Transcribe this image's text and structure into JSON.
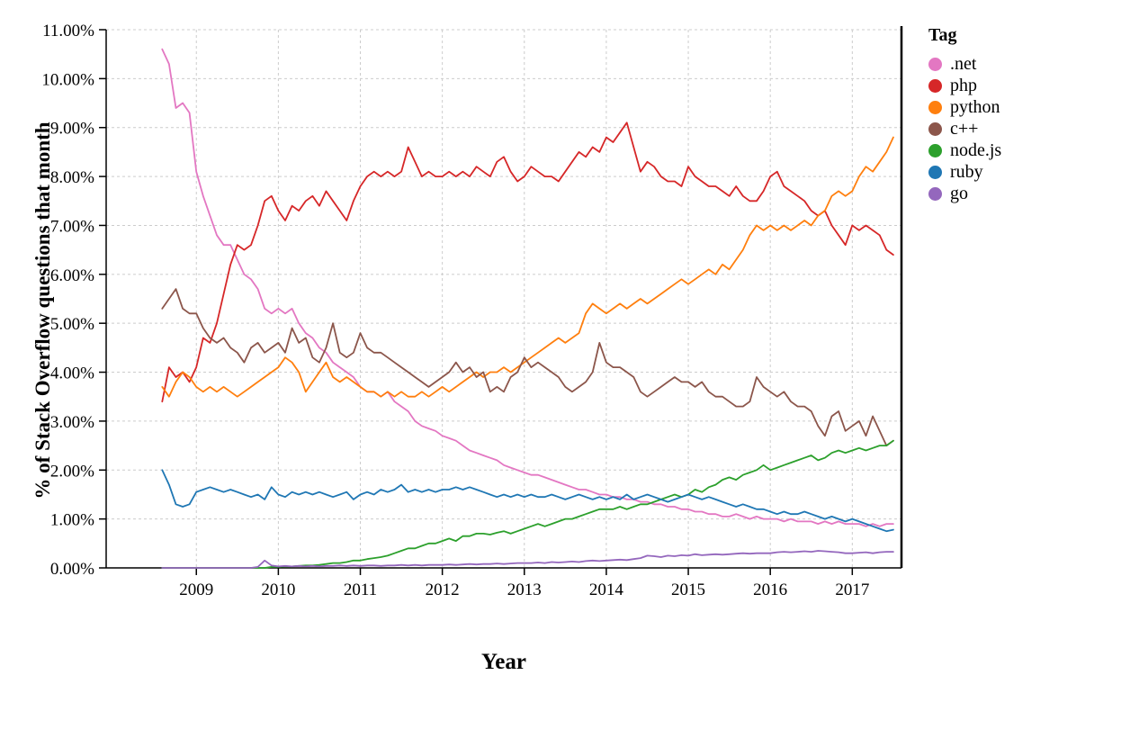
{
  "page": {
    "background": "#ffffff"
  },
  "chart_data": {
    "type": "line",
    "title": "",
    "xlabel": "Year",
    "ylabel": "% of Stack Overflow questions that month",
    "legend_title": "Tag",
    "legend_position": "right",
    "grid": true,
    "x_domain": [
      2007.9,
      2017.6
    ],
    "y_domain": [
      0,
      11
    ],
    "x_start": 2008.5833,
    "x_step": 0.0833333,
    "x_ticks": {
      "values": [
        2009,
        2010,
        2011,
        2012,
        2013,
        2014,
        2015,
        2016,
        2017
      ],
      "labels": [
        "2009",
        "2010",
        "2011",
        "2012",
        "2013",
        "2014",
        "2015",
        "2016",
        "2017"
      ]
    },
    "y_ticks": {
      "values": [
        0,
        1,
        2,
        3,
        4,
        5,
        6,
        7,
        8,
        9,
        10,
        11
      ],
      "labels": [
        "0.00%",
        "1.00%",
        "2.00%",
        "3.00%",
        "4.00%",
        "5.00%",
        "6.00%",
        "7.00%",
        "8.00%",
        "9.00%",
        "10.00%",
        "11.00%"
      ]
    },
    "series": [
      {
        "name": ".net",
        "color": "#e377c2",
        "values": [
          10.6,
          10.3,
          9.4,
          9.5,
          9.3,
          8.1,
          7.6,
          7.2,
          6.8,
          6.6,
          6.6,
          6.3,
          6.0,
          5.9,
          5.7,
          5.3,
          5.2,
          5.3,
          5.2,
          5.3,
          5.0,
          4.8,
          4.7,
          4.5,
          4.4,
          4.2,
          4.1,
          4.0,
          3.9,
          3.7,
          3.6,
          3.6,
          3.5,
          3.6,
          3.4,
          3.3,
          3.2,
          3.0,
          2.9,
          2.85,
          2.8,
          2.7,
          2.65,
          2.6,
          2.5,
          2.4,
          2.35,
          2.3,
          2.25,
          2.2,
          2.1,
          2.05,
          2.0,
          1.95,
          1.9,
          1.9,
          1.85,
          1.8,
          1.75,
          1.7,
          1.65,
          1.6,
          1.6,
          1.55,
          1.5,
          1.5,
          1.45,
          1.45,
          1.4,
          1.4,
          1.35,
          1.35,
          1.3,
          1.3,
          1.25,
          1.25,
          1.2,
          1.2,
          1.15,
          1.15,
          1.1,
          1.1,
          1.05,
          1.05,
          1.1,
          1.05,
          1.0,
          1.05,
          1.0,
          1.0,
          1.0,
          0.95,
          1.0,
          0.95,
          0.95,
          0.95,
          0.9,
          0.95,
          0.9,
          0.95,
          0.9,
          0.9,
          0.9,
          0.85,
          0.9,
          0.85,
          0.9,
          0.9
        ]
      },
      {
        "name": "php",
        "color": "#d62728",
        "values": [
          3.4,
          4.1,
          3.9,
          4.0,
          3.8,
          4.1,
          4.7,
          4.6,
          5.0,
          5.6,
          6.2,
          6.6,
          6.5,
          6.6,
          7.0,
          7.5,
          7.6,
          7.3,
          7.1,
          7.4,
          7.3,
          7.5,
          7.6,
          7.4,
          7.7,
          7.5,
          7.3,
          7.1,
          7.5,
          7.8,
          8.0,
          8.1,
          8.0,
          8.1,
          8.0,
          8.1,
          8.6,
          8.3,
          8.0,
          8.1,
          8.0,
          8.0,
          8.1,
          8.0,
          8.1,
          8.0,
          8.2,
          8.1,
          8.0,
          8.3,
          8.4,
          8.1,
          7.9,
          8.0,
          8.2,
          8.1,
          8.0,
          8.0,
          7.9,
          8.1,
          8.3,
          8.5,
          8.4,
          8.6,
          8.5,
          8.8,
          8.7,
          8.9,
          9.1,
          8.6,
          8.1,
          8.3,
          8.2,
          8.0,
          7.9,
          7.9,
          7.8,
          8.2,
          8.0,
          7.9,
          7.8,
          7.8,
          7.7,
          7.6,
          7.8,
          7.6,
          7.5,
          7.5,
          7.7,
          8.0,
          8.1,
          7.8,
          7.7,
          7.6,
          7.5,
          7.3,
          7.2,
          7.3,
          7.0,
          6.8,
          6.6,
          7.0,
          6.9,
          7.0,
          6.9,
          6.8,
          6.5,
          6.4
        ]
      },
      {
        "name": "python",
        "color": "#ff7f0e",
        "values": [
          3.7,
          3.5,
          3.8,
          4.0,
          3.9,
          3.7,
          3.6,
          3.7,
          3.6,
          3.7,
          3.6,
          3.5,
          3.6,
          3.7,
          3.8,
          3.9,
          4.0,
          4.1,
          4.3,
          4.2,
          4.0,
          3.6,
          3.8,
          4.0,
          4.2,
          3.9,
          3.8,
          3.9,
          3.8,
          3.7,
          3.6,
          3.6,
          3.5,
          3.6,
          3.5,
          3.6,
          3.5,
          3.5,
          3.6,
          3.5,
          3.6,
          3.7,
          3.6,
          3.7,
          3.8,
          3.9,
          4.0,
          3.9,
          4.0,
          4.0,
          4.1,
          4.0,
          4.1,
          4.2,
          4.3,
          4.4,
          4.5,
          4.6,
          4.7,
          4.6,
          4.7,
          4.8,
          5.2,
          5.4,
          5.3,
          5.2,
          5.3,
          5.4,
          5.3,
          5.4,
          5.5,
          5.4,
          5.5,
          5.6,
          5.7,
          5.8,
          5.9,
          5.8,
          5.9,
          6.0,
          6.1,
          6.0,
          6.2,
          6.1,
          6.3,
          6.5,
          6.8,
          7.0,
          6.9,
          7.0,
          6.9,
          7.0,
          6.9,
          7.0,
          7.1,
          7.0,
          7.2,
          7.3,
          7.6,
          7.7,
          7.6,
          7.7,
          8.0,
          8.2,
          8.1,
          8.3,
          8.5,
          8.8
        ]
      },
      {
        "name": "c++",
        "color": "#8c564b",
        "values": [
          5.3,
          5.5,
          5.7,
          5.3,
          5.2,
          5.2,
          4.9,
          4.7,
          4.6,
          4.7,
          4.5,
          4.4,
          4.2,
          4.5,
          4.6,
          4.4,
          4.5,
          4.6,
          4.4,
          4.9,
          4.6,
          4.7,
          4.3,
          4.2,
          4.5,
          5.0,
          4.4,
          4.3,
          4.4,
          4.8,
          4.5,
          4.4,
          4.4,
          4.3,
          4.2,
          4.1,
          4.0,
          3.9,
          3.8,
          3.7,
          3.8,
          3.9,
          4.0,
          4.2,
          4.0,
          4.1,
          3.9,
          4.0,
          3.6,
          3.7,
          3.6,
          3.9,
          4.0,
          4.3,
          4.1,
          4.2,
          4.1,
          4.0,
          3.9,
          3.7,
          3.6,
          3.7,
          3.8,
          4.0,
          4.6,
          4.2,
          4.1,
          4.1,
          4.0,
          3.9,
          3.6,
          3.5,
          3.6,
          3.7,
          3.8,
          3.9,
          3.8,
          3.8,
          3.7,
          3.8,
          3.6,
          3.5,
          3.5,
          3.4,
          3.3,
          3.3,
          3.4,
          3.9,
          3.7,
          3.6,
          3.5,
          3.6,
          3.4,
          3.3,
          3.3,
          3.2,
          2.9,
          2.7,
          3.1,
          3.2,
          2.8,
          2.9,
          3.0,
          2.7,
          3.1,
          2.8,
          2.5,
          2.6
        ]
      },
      {
        "name": "node.js",
        "color": "#2ca02c",
        "values": [
          0,
          0,
          0,
          0,
          0,
          0,
          0,
          0,
          0,
          0,
          0,
          0,
          0,
          0,
          0,
          0,
          0.02,
          0.02,
          0.03,
          0.03,
          0.04,
          0.05,
          0.05,
          0.06,
          0.08,
          0.1,
          0.1,
          0.12,
          0.15,
          0.15,
          0.18,
          0.2,
          0.22,
          0.25,
          0.3,
          0.35,
          0.4,
          0.4,
          0.45,
          0.5,
          0.5,
          0.55,
          0.6,
          0.55,
          0.65,
          0.65,
          0.7,
          0.7,
          0.68,
          0.72,
          0.75,
          0.7,
          0.75,
          0.8,
          0.85,
          0.9,
          0.85,
          0.9,
          0.95,
          1.0,
          1.0,
          1.05,
          1.1,
          1.15,
          1.2,
          1.2,
          1.2,
          1.25,
          1.2,
          1.25,
          1.3,
          1.3,
          1.35,
          1.4,
          1.45,
          1.5,
          1.45,
          1.5,
          1.6,
          1.55,
          1.65,
          1.7,
          1.8,
          1.85,
          1.8,
          1.9,
          1.95,
          2.0,
          2.1,
          2.0,
          2.05,
          2.1,
          2.15,
          2.2,
          2.25,
          2.3,
          2.2,
          2.25,
          2.35,
          2.4,
          2.35,
          2.4,
          2.45,
          2.4,
          2.45,
          2.5,
          2.5,
          2.6
        ]
      },
      {
        "name": "ruby",
        "color": "#1f77b4",
        "values": [
          2.0,
          1.7,
          1.3,
          1.25,
          1.3,
          1.55,
          1.6,
          1.65,
          1.6,
          1.55,
          1.6,
          1.55,
          1.5,
          1.45,
          1.5,
          1.4,
          1.65,
          1.5,
          1.45,
          1.55,
          1.5,
          1.55,
          1.5,
          1.55,
          1.5,
          1.45,
          1.5,
          1.55,
          1.4,
          1.5,
          1.55,
          1.5,
          1.6,
          1.55,
          1.6,
          1.7,
          1.55,
          1.6,
          1.55,
          1.6,
          1.55,
          1.6,
          1.6,
          1.65,
          1.6,
          1.65,
          1.6,
          1.55,
          1.5,
          1.45,
          1.5,
          1.45,
          1.5,
          1.45,
          1.5,
          1.45,
          1.45,
          1.5,
          1.45,
          1.4,
          1.45,
          1.5,
          1.45,
          1.4,
          1.45,
          1.4,
          1.45,
          1.4,
          1.5,
          1.4,
          1.45,
          1.5,
          1.45,
          1.4,
          1.35,
          1.4,
          1.45,
          1.5,
          1.45,
          1.4,
          1.45,
          1.4,
          1.35,
          1.3,
          1.25,
          1.3,
          1.25,
          1.2,
          1.2,
          1.15,
          1.1,
          1.15,
          1.1,
          1.1,
          1.15,
          1.1,
          1.05,
          1.0,
          1.05,
          1.0,
          0.95,
          1.0,
          0.95,
          0.9,
          0.85,
          0.8,
          0.75,
          0.78
        ]
      },
      {
        "name": "go",
        "color": "#9467bd",
        "values": [
          0,
          0,
          0,
          0,
          0,
          0,
          0,
          0,
          0,
          0,
          0,
          0,
          0,
          0,
          0.02,
          0.15,
          0.05,
          0.03,
          0.04,
          0.03,
          0.04,
          0.03,
          0.04,
          0.03,
          0.04,
          0.04,
          0.05,
          0.04,
          0.05,
          0.04,
          0.05,
          0.05,
          0.04,
          0.05,
          0.05,
          0.06,
          0.05,
          0.06,
          0.05,
          0.06,
          0.06,
          0.06,
          0.07,
          0.06,
          0.07,
          0.08,
          0.07,
          0.08,
          0.08,
          0.09,
          0.08,
          0.09,
          0.1,
          0.1,
          0.1,
          0.11,
          0.1,
          0.12,
          0.11,
          0.12,
          0.13,
          0.12,
          0.14,
          0.15,
          0.14,
          0.15,
          0.16,
          0.17,
          0.16,
          0.18,
          0.2,
          0.25,
          0.24,
          0.22,
          0.25,
          0.24,
          0.26,
          0.25,
          0.28,
          0.26,
          0.27,
          0.28,
          0.27,
          0.28,
          0.29,
          0.3,
          0.29,
          0.3,
          0.3,
          0.3,
          0.32,
          0.33,
          0.32,
          0.33,
          0.34,
          0.33,
          0.35,
          0.34,
          0.33,
          0.32,
          0.3,
          0.3,
          0.31,
          0.32,
          0.3,
          0.32,
          0.33,
          0.33
        ]
      }
    ]
  }
}
